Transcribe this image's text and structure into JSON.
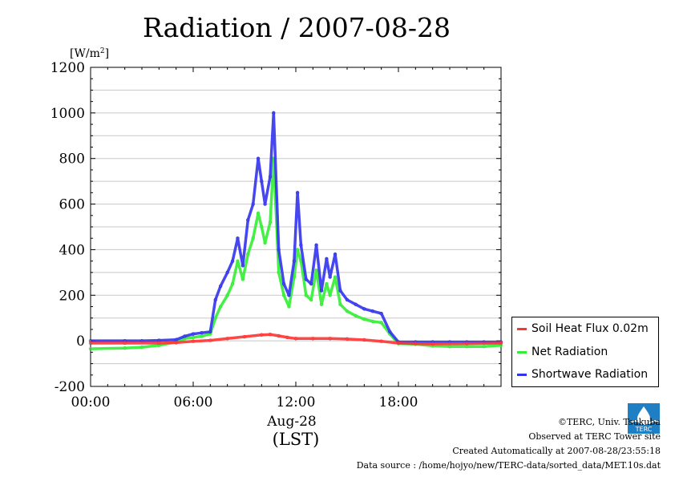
{
  "chart_data": {
    "type": "line",
    "title": "Radiation / 2007-08-28",
    "ylabel_prefix": "[W/m",
    "ylabel_sup": "2",
    "ylabel_suffix": "]",
    "xlabel_date": "Aug-28",
    "xlabel_tz": "(LST)",
    "ylim": [
      -200,
      1200
    ],
    "xlim": [
      0,
      24
    ],
    "yticks": [
      -200,
      0,
      200,
      400,
      600,
      800,
      1000,
      1200
    ],
    "ytick_labels": [
      "-200",
      "0",
      "200",
      "400",
      "600",
      "800",
      "1000",
      "1200"
    ],
    "xticks": [
      0,
      6,
      12,
      18
    ],
    "xtick_labels": [
      "00:00",
      "06:00",
      "12:00",
      "18:00"
    ],
    "grid": "horizontal",
    "legend_position": "right",
    "series": [
      {
        "name": "Soil Heat Flux 0.02m",
        "color": "#ff3333",
        "x": [
          0,
          2,
          4,
          5,
          6,
          7,
          8,
          9,
          10,
          10.5,
          11,
          11.5,
          12,
          13,
          14,
          15,
          16,
          17,
          18,
          19,
          20,
          22,
          24
        ],
        "y": [
          -10,
          -10,
          -10,
          -8,
          -2,
          2,
          10,
          18,
          26,
          28,
          22,
          15,
          10,
          10,
          10,
          8,
          4,
          -2,
          -10,
          -12,
          -14,
          -12,
          -10
        ]
      },
      {
        "name": "Net Radiation",
        "color": "#33ee33",
        "x": [
          0,
          2,
          3,
          4,
          5,
          5.5,
          6,
          6.5,
          7,
          7.3,
          7.6,
          8,
          8.3,
          8.6,
          8.9,
          9.2,
          9.5,
          9.8,
          10,
          10.2,
          10.5,
          10.7,
          11,
          11.3,
          11.6,
          11.9,
          12.1,
          12.3,
          12.6,
          12.9,
          13.2,
          13.5,
          13.8,
          14,
          14.3,
          14.6,
          15,
          15.5,
          16,
          16.5,
          17,
          17.5,
          18,
          19,
          20,
          21,
          22,
          23,
          24
        ],
        "y": [
          -35,
          -32,
          -28,
          -20,
          -5,
          10,
          15,
          20,
          30,
          100,
          150,
          200,
          250,
          350,
          270,
          380,
          450,
          560,
          500,
          430,
          520,
          800,
          300,
          200,
          150,
          280,
          400,
          350,
          200,
          180,
          310,
          160,
          250,
          200,
          280,
          160,
          130,
          110,
          95,
          85,
          80,
          30,
          -12,
          -15,
          -22,
          -25,
          -25,
          -25,
          -20
        ]
      },
      {
        "name": "Shortwave Radiation",
        "color": "#3333ee",
        "x": [
          0,
          2,
          3,
          4,
          5,
          5.5,
          6,
          6.5,
          7,
          7.3,
          7.6,
          8,
          8.3,
          8.6,
          8.9,
          9.2,
          9.5,
          9.8,
          10,
          10.2,
          10.5,
          10.7,
          11,
          11.3,
          11.6,
          11.9,
          12.1,
          12.3,
          12.6,
          12.9,
          13.2,
          13.5,
          13.8,
          14,
          14.3,
          14.6,
          15,
          15.5,
          16,
          16.5,
          17,
          17.5,
          18,
          19,
          20,
          21,
          22,
          23,
          24
        ],
        "y": [
          0,
          0,
          0,
          2,
          5,
          20,
          30,
          35,
          40,
          180,
          240,
          300,
          350,
          450,
          330,
          530,
          600,
          800,
          700,
          600,
          720,
          1000,
          400,
          250,
          200,
          350,
          650,
          420,
          270,
          250,
          420,
          220,
          360,
          280,
          380,
          220,
          180,
          160,
          140,
          130,
          120,
          40,
          -5,
          -5,
          -5,
          -5,
          -5,
          -5,
          -5
        ]
      }
    ]
  },
  "footer": {
    "copyright": "©TERC, Univ. Tsukuba",
    "site": "Observed at TERC Tower site",
    "created": "Created Automatically at 2007-08-28/23:55:18",
    "source": "Data source : /home/hojyo/new/TERC-data/sorted_data/MET.10s.dat"
  },
  "logo_text": "TERC"
}
